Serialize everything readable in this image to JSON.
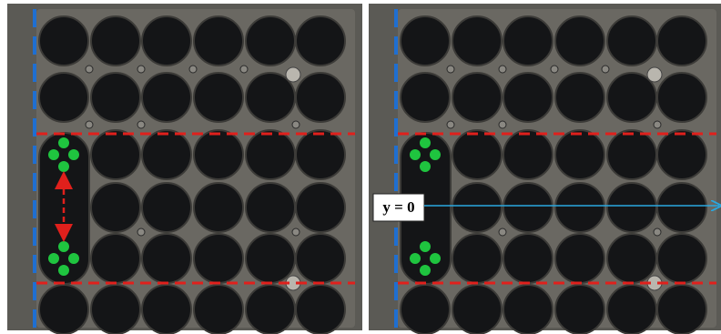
{
  "annotations": {
    "right_panel_label": "y = 0"
  }
}
